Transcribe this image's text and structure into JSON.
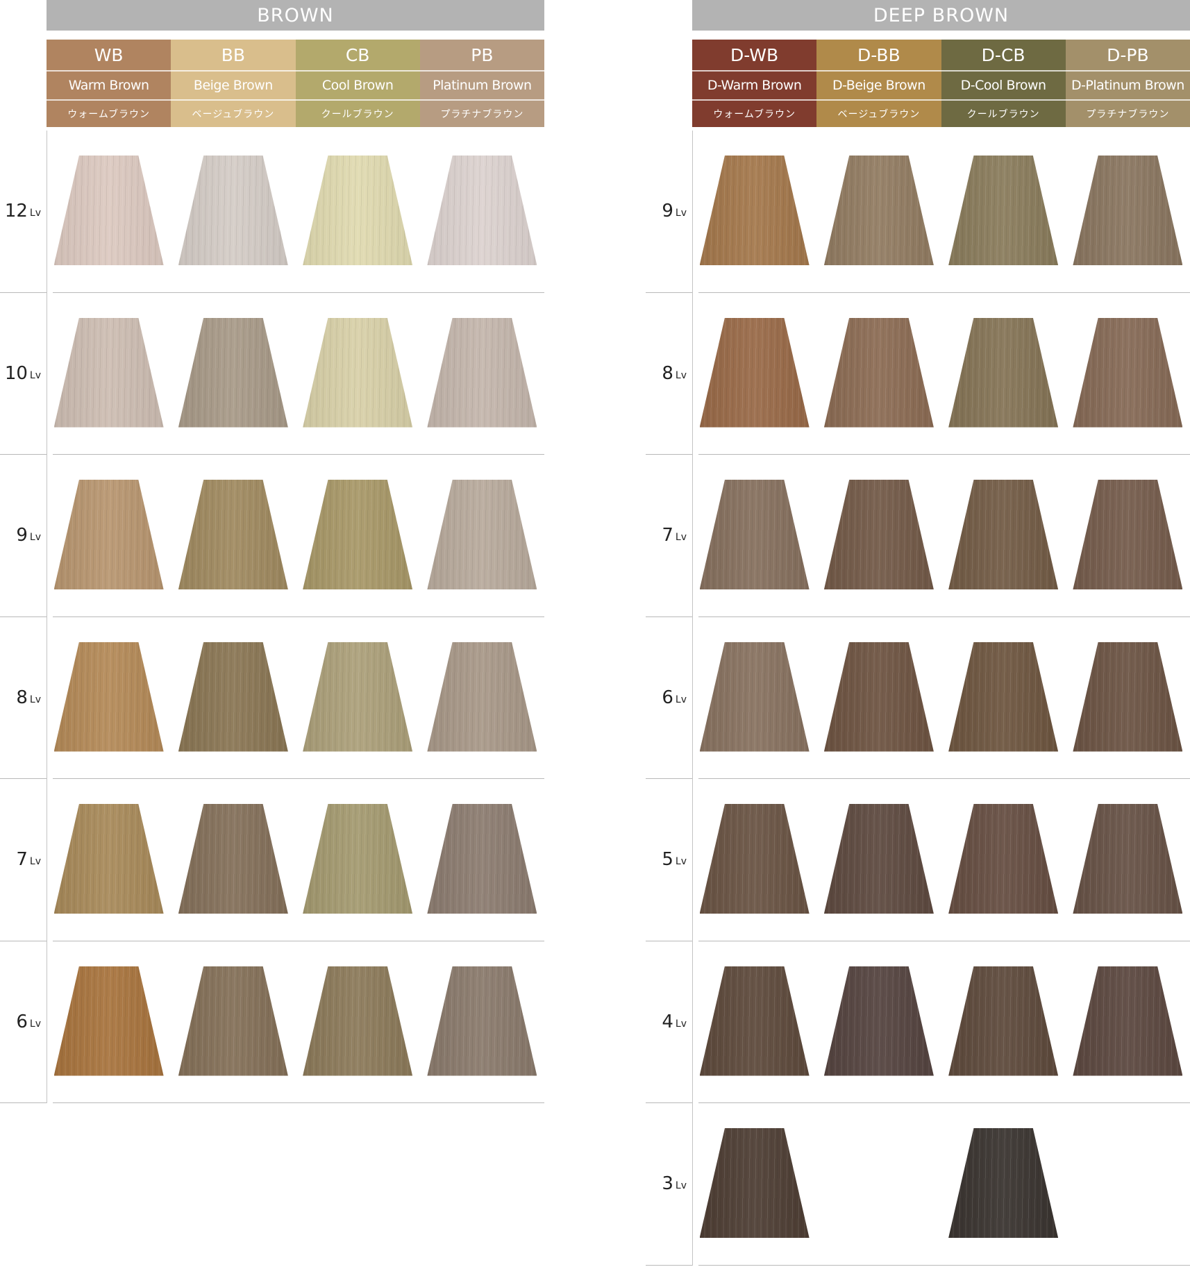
{
  "sections": [
    {
      "title": "BROWN",
      "columns": [
        {
          "code": "WB",
          "name": "Warm Brown",
          "jp": "ウォームブラウン",
          "color": "#b08460"
        },
        {
          "code": "BB",
          "name": "Beige Brown",
          "jp": "ベージュブラウン",
          "color": "#d9be8c"
        },
        {
          "code": "CB",
          "name": "Cool Brown",
          "jp": "クールブラウン",
          "color": "#b3a96c"
        },
        {
          "code": "PB",
          "name": "Platinum Brown",
          "jp": "プラチナブラウン",
          "color": "#b79c82"
        }
      ],
      "rows": [
        {
          "level": "12",
          "unit": "Lv",
          "swatches": [
            "#dcc9c0",
            "#d4ccc6",
            "#e0dab0",
            "#dcd2cf"
          ]
        },
        {
          "level": "10",
          "unit": "Lv",
          "swatches": [
            "#cdbdb2",
            "#a89a88",
            "#d8d0a8",
            "#c4b6ac"
          ]
        },
        {
          "level": "9",
          "unit": "Lv",
          "swatches": [
            "#b89670",
            "#a08a60",
            "#a89868",
            "#b8aa9c"
          ]
        },
        {
          "level": "8",
          "unit": "Lv",
          "swatches": [
            "#b48a58",
            "#8a7654",
            "#aca07a",
            "#a89888"
          ]
        },
        {
          "level": "7",
          "unit": "Lv",
          "swatches": [
            "#a88a5a",
            "#84705a",
            "#a49a70",
            "#8c7c70"
          ]
        },
        {
          "level": "6",
          "unit": "Lv",
          "swatches": [
            "#a8743e",
            "#847058",
            "#8c7a5a",
            "#8a7a6c"
          ]
        }
      ]
    },
    {
      "title": "DEEP BROWN",
      "columns": [
        {
          "code": "D-WB",
          "name": "D-Warm Brown",
          "jp": "ウォームブラウン",
          "color": "#803c2e"
        },
        {
          "code": "D-BB",
          "name": "D-Beige Brown",
          "jp": "ベージュブラウン",
          "color": "#b08a4a"
        },
        {
          "code": "D-CB",
          "name": "D-Cool Brown",
          "jp": "クールブラウン",
          "color": "#6e6a42"
        },
        {
          "code": "D-PB",
          "name": "D-Platinum Brown",
          "jp": "プラチナブラウン",
          "color": "#a3906a"
        }
      ],
      "rows": [
        {
          "level": "9",
          "unit": "Lv",
          "swatches": [
            "#a4784c",
            "#927c62",
            "#8a7c5c",
            "#8a7660"
          ]
        },
        {
          "level": "8",
          "unit": "Lv",
          "swatches": [
            "#996a48",
            "#8c6c54",
            "#857456",
            "#866a56"
          ]
        },
        {
          "level": "7",
          "unit": "Lv",
          "swatches": [
            "#86705e",
            "#735a48",
            "#735c46",
            "#755c4c"
          ]
        },
        {
          "level": "6",
          "unit": "Lv",
          "swatches": [
            "#887260",
            "#6e5442",
            "#6e5640",
            "#6c5444"
          ]
        },
        {
          "level": "5",
          "unit": "Lv",
          "swatches": [
            "#6a5444",
            "#5e4a40",
            "#664e42",
            "#675246"
          ]
        },
        {
          "level": "4",
          "unit": "Lv",
          "swatches": [
            "#5e4a3c",
            "#554440",
            "#5e4a3c",
            "#5c4840"
          ]
        },
        {
          "level": "3",
          "unit": "Lv",
          "swatches": [
            "#4e3e34",
            null,
            "#3a3430",
            null
          ]
        }
      ]
    }
  ]
}
